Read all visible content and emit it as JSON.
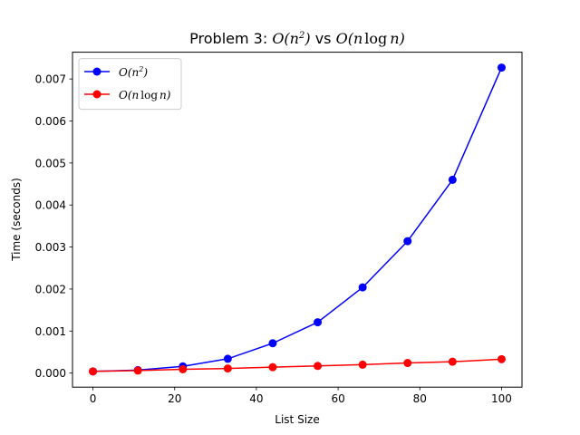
{
  "chart_data": {
    "type": "line",
    "title": "Problem 3: O(n^2) vs O(n log n)",
    "title_parts": {
      "prefix": "Problem 3: ",
      "o1": "O(",
      "n1": "n",
      "sup": "2",
      "close1": ")",
      "vs": " vs ",
      "o2": "O(",
      "n2": "n",
      "log": "log",
      "n3": "n",
      "close2": ")"
    },
    "xlabel": "List Size",
    "ylabel": "Time (seconds)",
    "xlim": [
      -5,
      105
    ],
    "ylim": [
      -0.000335,
      0.007637
    ],
    "xticks": [
      0,
      20,
      40,
      60,
      80,
      100
    ],
    "xtick_labels": [
      "0",
      "20",
      "40",
      "60",
      "80",
      "100"
    ],
    "yticks": [
      0,
      0.001,
      0.002,
      0.003,
      0.004,
      0.005,
      0.006,
      0.007
    ],
    "ytick_labels": [
      "0.000",
      "0.001",
      "0.002",
      "0.003",
      "0.004",
      "0.005",
      "0.006",
      "0.007"
    ],
    "grid": false,
    "legend_position": "top-left",
    "x": [
      0,
      11,
      22,
      33,
      44,
      55,
      66,
      77,
      88,
      100
    ],
    "series": [
      {
        "name": "O(n^2)",
        "color": "#0000ff",
        "marker": "circle",
        "values": [
          4e-05,
          7e-05,
          0.00016,
          0.00034,
          0.00071,
          0.00121,
          0.00204,
          0.00314,
          0.0046,
          0.00727
        ]
      },
      {
        "name": "O(n log n)",
        "color": "#ff0000",
        "marker": "circle",
        "values": [
          4e-05,
          6e-05,
          9e-05,
          0.00011,
          0.00014,
          0.00017,
          0.0002,
          0.00024,
          0.00027,
          0.00033
        ]
      }
    ],
    "legend": [
      {
        "o": "O(",
        "n": "n",
        "sup": "2",
        "close": ")"
      },
      {
        "o": "O(",
        "n": "n",
        "log": "log",
        "n2": "n",
        "close": ")"
      }
    ]
  }
}
